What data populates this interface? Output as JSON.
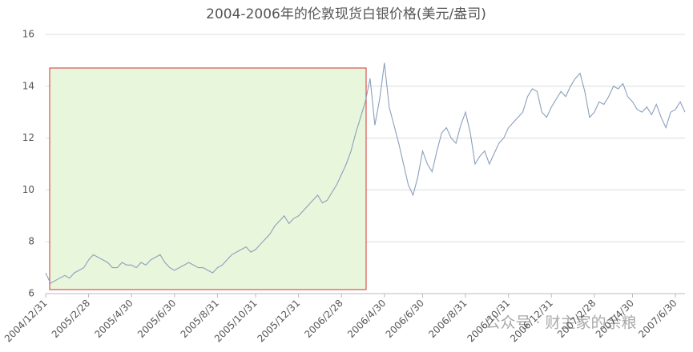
{
  "chart_data": {
    "type": "line",
    "title": "2004-2006年的伦敦现货白银价格(美元/盎司)",
    "watermark": "公众号 · 财主家的余粮",
    "categories": [
      "2004/12/31",
      null,
      null,
      null,
      null,
      null,
      null,
      null,
      null,
      "2005/2/28",
      null,
      null,
      null,
      null,
      null,
      null,
      null,
      null,
      "2005/4/30",
      null,
      null,
      null,
      null,
      null,
      null,
      null,
      null,
      "2005/6/30",
      null,
      null,
      null,
      null,
      null,
      null,
      null,
      null,
      "2005/8/31",
      null,
      null,
      null,
      null,
      null,
      null,
      null,
      "2005/10/31",
      null,
      null,
      null,
      null,
      null,
      null,
      null,
      null,
      "2005/12/31",
      null,
      null,
      null,
      null,
      null,
      null,
      null,
      null,
      "2006/2/28",
      null,
      null,
      null,
      null,
      null,
      null,
      null,
      null,
      "2006/4/30",
      null,
      null,
      null,
      null,
      null,
      null,
      null,
      "2006/6/30",
      null,
      null,
      null,
      null,
      null,
      null,
      null,
      null,
      "2006/8/31",
      null,
      null,
      null,
      null,
      null,
      null,
      null,
      null,
      "2006/10/31",
      null,
      null,
      null,
      null,
      null,
      null,
      null,
      null,
      "2006/12/31",
      null,
      null,
      null,
      null,
      null,
      null,
      null,
      null,
      "2007/2/28",
      null,
      null,
      null,
      null,
      null,
      null,
      null,
      "2007/4/30",
      null,
      null,
      null,
      null,
      null,
      null,
      null,
      null,
      "2007/6/30",
      null,
      null
    ],
    "values": [
      6.8,
      6.4,
      6.5,
      6.6,
      6.7,
      6.6,
      6.8,
      6.9,
      7.0,
      7.3,
      7.5,
      7.4,
      7.3,
      7.2,
      7.0,
      7.0,
      7.2,
      7.1,
      7.1,
      7.0,
      7.2,
      7.1,
      7.3,
      7.4,
      7.5,
      7.2,
      7.0,
      6.9,
      7.0,
      7.1,
      7.2,
      7.1,
      7.0,
      7.0,
      6.9,
      6.8,
      7.0,
      7.1,
      7.3,
      7.5,
      7.6,
      7.7,
      7.8,
      7.6,
      7.7,
      7.9,
      8.1,
      8.3,
      8.6,
      8.8,
      9.0,
      8.7,
      8.9,
      9.0,
      9.2,
      9.4,
      9.6,
      9.8,
      9.5,
      9.6,
      9.9,
      10.2,
      10.6,
      11.0,
      11.5,
      12.2,
      12.8,
      13.4,
      14.3,
      12.5,
      13.5,
      14.9,
      13.2,
      12.5,
      11.8,
      11.0,
      10.2,
      9.8,
      10.5,
      11.5,
      11.0,
      10.7,
      11.5,
      12.2,
      12.4,
      12.0,
      11.8,
      12.5,
      13.0,
      12.2,
      11.0,
      11.3,
      11.5,
      11.0,
      11.4,
      11.8,
      12.0,
      12.4,
      12.6,
      12.8,
      13.0,
      13.6,
      13.9,
      13.8,
      13.0,
      12.8,
      13.2,
      13.5,
      13.8,
      13.6,
      14.0,
      14.3,
      14.5,
      13.8,
      12.8,
      13.0,
      13.4,
      13.3,
      13.6,
      14.0,
      13.9,
      14.1,
      13.6,
      13.4,
      13.1,
      13.0,
      13.2,
      12.9,
      13.3,
      12.8,
      12.4,
      13.0,
      13.1,
      13.4,
      13.0
    ],
    "color": "#8a9fbd",
    "ylim": [
      6,
      16
    ],
    "yticks": [
      6,
      8,
      10,
      12,
      14,
      16
    ],
    "grid": true
  }
}
